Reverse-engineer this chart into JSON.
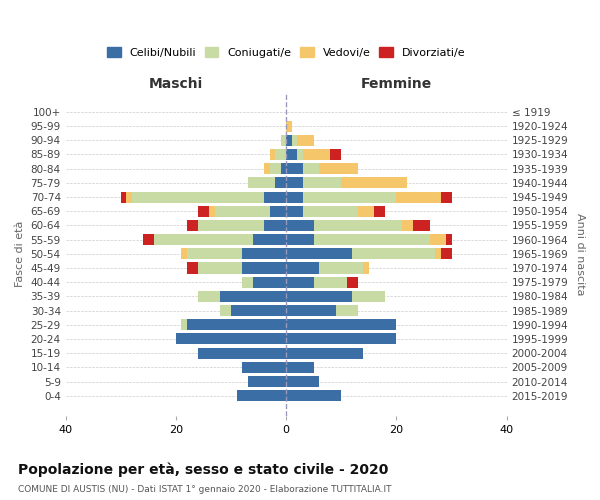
{
  "age_groups": [
    "0-4",
    "5-9",
    "10-14",
    "15-19",
    "20-24",
    "25-29",
    "30-34",
    "35-39",
    "40-44",
    "45-49",
    "50-54",
    "55-59",
    "60-64",
    "65-69",
    "70-74",
    "75-79",
    "80-84",
    "85-89",
    "90-94",
    "95-99",
    "100+"
  ],
  "birth_years": [
    "2015-2019",
    "2010-2014",
    "2005-2009",
    "2000-2004",
    "1995-1999",
    "1990-1994",
    "1985-1989",
    "1980-1984",
    "1975-1979",
    "1970-1974",
    "1965-1969",
    "1960-1964",
    "1955-1959",
    "1950-1954",
    "1945-1949",
    "1940-1944",
    "1935-1939",
    "1930-1934",
    "1925-1929",
    "1920-1924",
    "≤ 1919"
  ],
  "maschi": {
    "celibi": [
      9,
      7,
      8,
      16,
      20,
      18,
      10,
      12,
      6,
      8,
      8,
      6,
      4,
      3,
      4,
      2,
      1,
      0,
      0,
      0,
      0
    ],
    "coniugati": [
      0,
      0,
      0,
      0,
      0,
      1,
      2,
      4,
      2,
      8,
      10,
      18,
      12,
      10,
      24,
      5,
      2,
      2,
      1,
      0,
      0
    ],
    "vedovi": [
      0,
      0,
      0,
      0,
      0,
      0,
      0,
      0,
      0,
      0,
      1,
      0,
      0,
      1,
      1,
      0,
      1,
      1,
      0,
      0,
      0
    ],
    "divorziati": [
      0,
      0,
      0,
      0,
      0,
      0,
      0,
      0,
      0,
      2,
      0,
      2,
      2,
      2,
      1,
      0,
      0,
      0,
      0,
      0,
      0
    ]
  },
  "femmine": {
    "nubili": [
      10,
      6,
      5,
      14,
      20,
      20,
      9,
      12,
      5,
      6,
      12,
      5,
      5,
      3,
      3,
      3,
      3,
      2,
      1,
      0,
      0
    ],
    "coniugate": [
      0,
      0,
      0,
      0,
      0,
      0,
      4,
      6,
      6,
      8,
      15,
      21,
      16,
      10,
      17,
      7,
      3,
      1,
      1,
      0,
      0
    ],
    "vedove": [
      0,
      0,
      0,
      0,
      0,
      0,
      0,
      0,
      0,
      1,
      1,
      3,
      2,
      3,
      8,
      12,
      7,
      5,
      3,
      1,
      0
    ],
    "divorziate": [
      0,
      0,
      0,
      0,
      0,
      0,
      0,
      0,
      2,
      0,
      2,
      1,
      3,
      2,
      2,
      0,
      0,
      2,
      0,
      0,
      0
    ]
  },
  "colors": {
    "celibi": "#3a6ea5",
    "coniugati": "#c8dba4",
    "vedovi": "#f5c76a",
    "divorziati": "#cc2222"
  },
  "title": "Popolazione per età, sesso e stato civile - 2020",
  "subtitle": "COMUNE DI AUSTIS (NU) - Dati ISTAT 1° gennaio 2020 - Elaborazione TUTTITALIA.IT",
  "xlabel_left": "Maschi",
  "xlabel_right": "Femmine",
  "ylabel_left": "Fasce di età",
  "ylabel_right": "Anni di nascita",
  "xlim": 40,
  "legend_labels": [
    "Celibi/Nubili",
    "Coniugati/e",
    "Vedovi/e",
    "Divorziati/e"
  ]
}
